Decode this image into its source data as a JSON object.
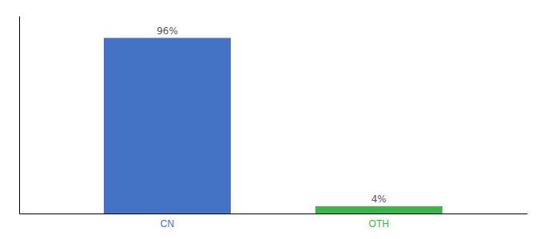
{
  "chart_data": {
    "type": "bar",
    "categories": [
      "CN",
      "OTH"
    ],
    "values": [
      96,
      4
    ],
    "value_labels": [
      "96%",
      "4%"
    ],
    "colors": [
      "#4472c4",
      "#3cb54a"
    ],
    "ylim": [
      0,
      108
    ],
    "tick_labels": "x",
    "data_labels": true,
    "grid": false
  }
}
